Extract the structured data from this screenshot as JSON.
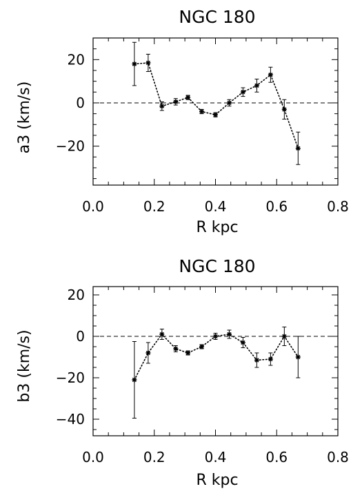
{
  "chart_data": [
    {
      "type": "scatter",
      "title": "NGC 180",
      "xlabel": "R kpc",
      "ylabel": "a3 (km/s)",
      "xlim": [
        0.0,
        0.8
      ],
      "ylim": [
        -38,
        30
      ],
      "xticks": [
        "0.0",
        "0.2",
        "0.4",
        "0.6",
        "0.8"
      ],
      "yticks": [
        {
          "value": 20,
          "label": "20"
        },
        {
          "value": 0,
          "label": "0"
        },
        {
          "value": -20,
          "label": "−20"
        }
      ],
      "reference_line": 0,
      "series": [
        {
          "style": "dotted line with asterisk markers and error bars",
          "x": [
            0.135,
            0.18,
            0.225,
            0.27,
            0.31,
            0.355,
            0.4,
            0.445,
            0.49,
            0.535,
            0.58,
            0.625,
            0.67
          ],
          "y": [
            18,
            18.5,
            -1.5,
            0.5,
            2.5,
            -4,
            -5.5,
            0,
            5,
            8,
            13,
            -3,
            -21
          ],
          "err": [
            10,
            4,
            2,
            1.5,
            1,
            1,
            1,
            1.5,
            2,
            3,
            3.5,
            4.5,
            7.5
          ]
        }
      ]
    },
    {
      "type": "scatter",
      "title": "NGC 180",
      "xlabel": "R kpc",
      "ylabel": "b3 (km/s)",
      "xlim": [
        0.0,
        0.8
      ],
      "ylim": [
        -48,
        24
      ],
      "xticks": [
        "0.0",
        "0.2",
        "0.4",
        "0.6",
        "0.8"
      ],
      "yticks": [
        {
          "value": 20,
          "label": "20"
        },
        {
          "value": 0,
          "label": "0"
        },
        {
          "value": -20,
          "label": "−20"
        },
        {
          "value": -40,
          "label": "−40"
        }
      ],
      "reference_line": 0,
      "series": [
        {
          "style": "dotted line with asterisk markers and error bars",
          "x": [
            0.135,
            0.18,
            0.225,
            0.27,
            0.31,
            0.355,
            0.4,
            0.445,
            0.49,
            0.535,
            0.58,
            0.625,
            0.67
          ],
          "y": [
            -21,
            -8,
            1,
            -6,
            -8,
            -5,
            0,
            1,
            -3,
            -11.5,
            -11,
            0,
            -10
          ],
          "err": [
            18.5,
            5,
            2.5,
            1.5,
            1,
            1,
            1.5,
            2,
            2.5,
            3.5,
            3,
            4.5,
            10
          ]
        }
      ]
    }
  ]
}
